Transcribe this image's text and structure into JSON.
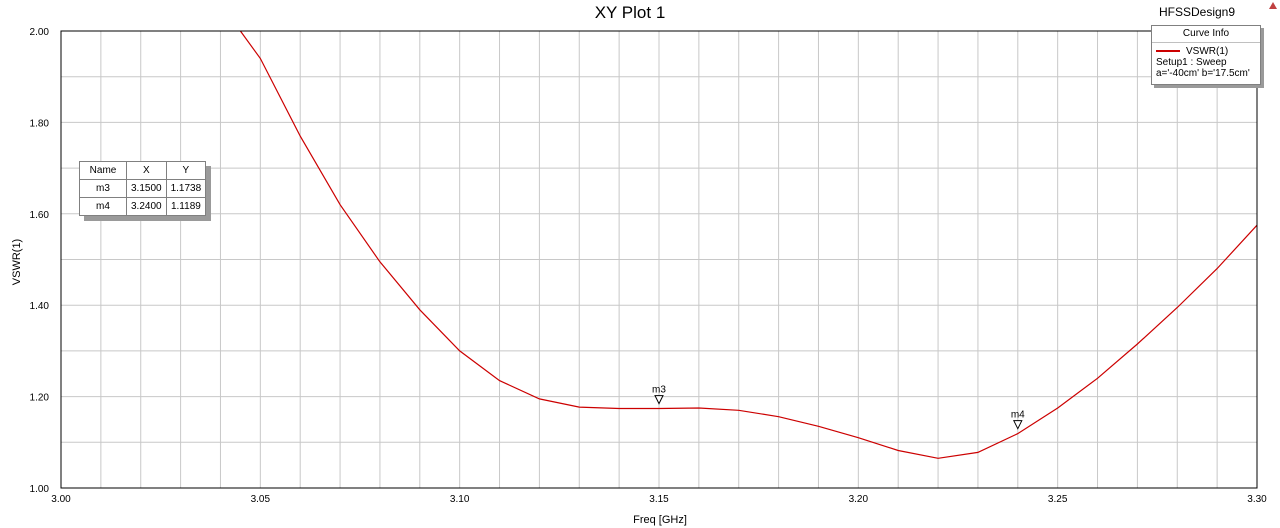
{
  "design_name": "HFSSDesign9",
  "legend": {
    "header": "Curve Info",
    "entries": [
      {
        "name": "VSWR(1)",
        "color": "#cc0000",
        "lines": [
          "Setup1 : Sweep",
          "a='-40cm' b='17.5cm'"
        ]
      }
    ]
  },
  "marker_table": {
    "columns": [
      "Name",
      "X",
      "Y"
    ],
    "rows": [
      {
        "name": "m3",
        "x": "3.1500",
        "y": "1.1738"
      },
      {
        "name": "m4",
        "x": "3.2400",
        "y": "1.1189"
      }
    ]
  },
  "chart_data": {
    "type": "line",
    "title": "XY Plot 1",
    "xlabel": "Freq [GHz]",
    "ylabel": "VSWR(1)",
    "xlim": [
      3.0,
      3.3
    ],
    "ylim": [
      1.0,
      2.0
    ],
    "x_ticks": [
      "3.00",
      "3.05",
      "3.10",
      "3.15",
      "3.20",
      "3.25",
      "3.30"
    ],
    "y_ticks": [
      "1.00",
      "1.20",
      "1.40",
      "1.60",
      "1.80",
      "2.00"
    ],
    "x_minor_step": 0.01,
    "y_minor_step": 0.1,
    "grid": true,
    "legend_position": "top-right",
    "series": [
      {
        "name": "VSWR(1)",
        "color": "#cc0000",
        "x": [
          3.045,
          3.05,
          3.06,
          3.07,
          3.08,
          3.09,
          3.1,
          3.11,
          3.12,
          3.13,
          3.14,
          3.15,
          3.16,
          3.17,
          3.18,
          3.19,
          3.2,
          3.21,
          3.22,
          3.23,
          3.24,
          3.25,
          3.26,
          3.27,
          3.28,
          3.29,
          3.3
        ],
        "y": [
          2.0,
          1.94,
          1.77,
          1.62,
          1.495,
          1.39,
          1.3,
          1.235,
          1.195,
          1.177,
          1.174,
          1.174,
          1.175,
          1.17,
          1.156,
          1.135,
          1.11,
          1.082,
          1.065,
          1.078,
          1.119,
          1.175,
          1.24,
          1.315,
          1.395,
          1.48,
          1.575
        ]
      }
    ],
    "markers": [
      {
        "name": "m3",
        "x": 3.15,
        "y": 1.1738
      },
      {
        "name": "m4",
        "x": 3.24,
        "y": 1.1189
      }
    ]
  }
}
